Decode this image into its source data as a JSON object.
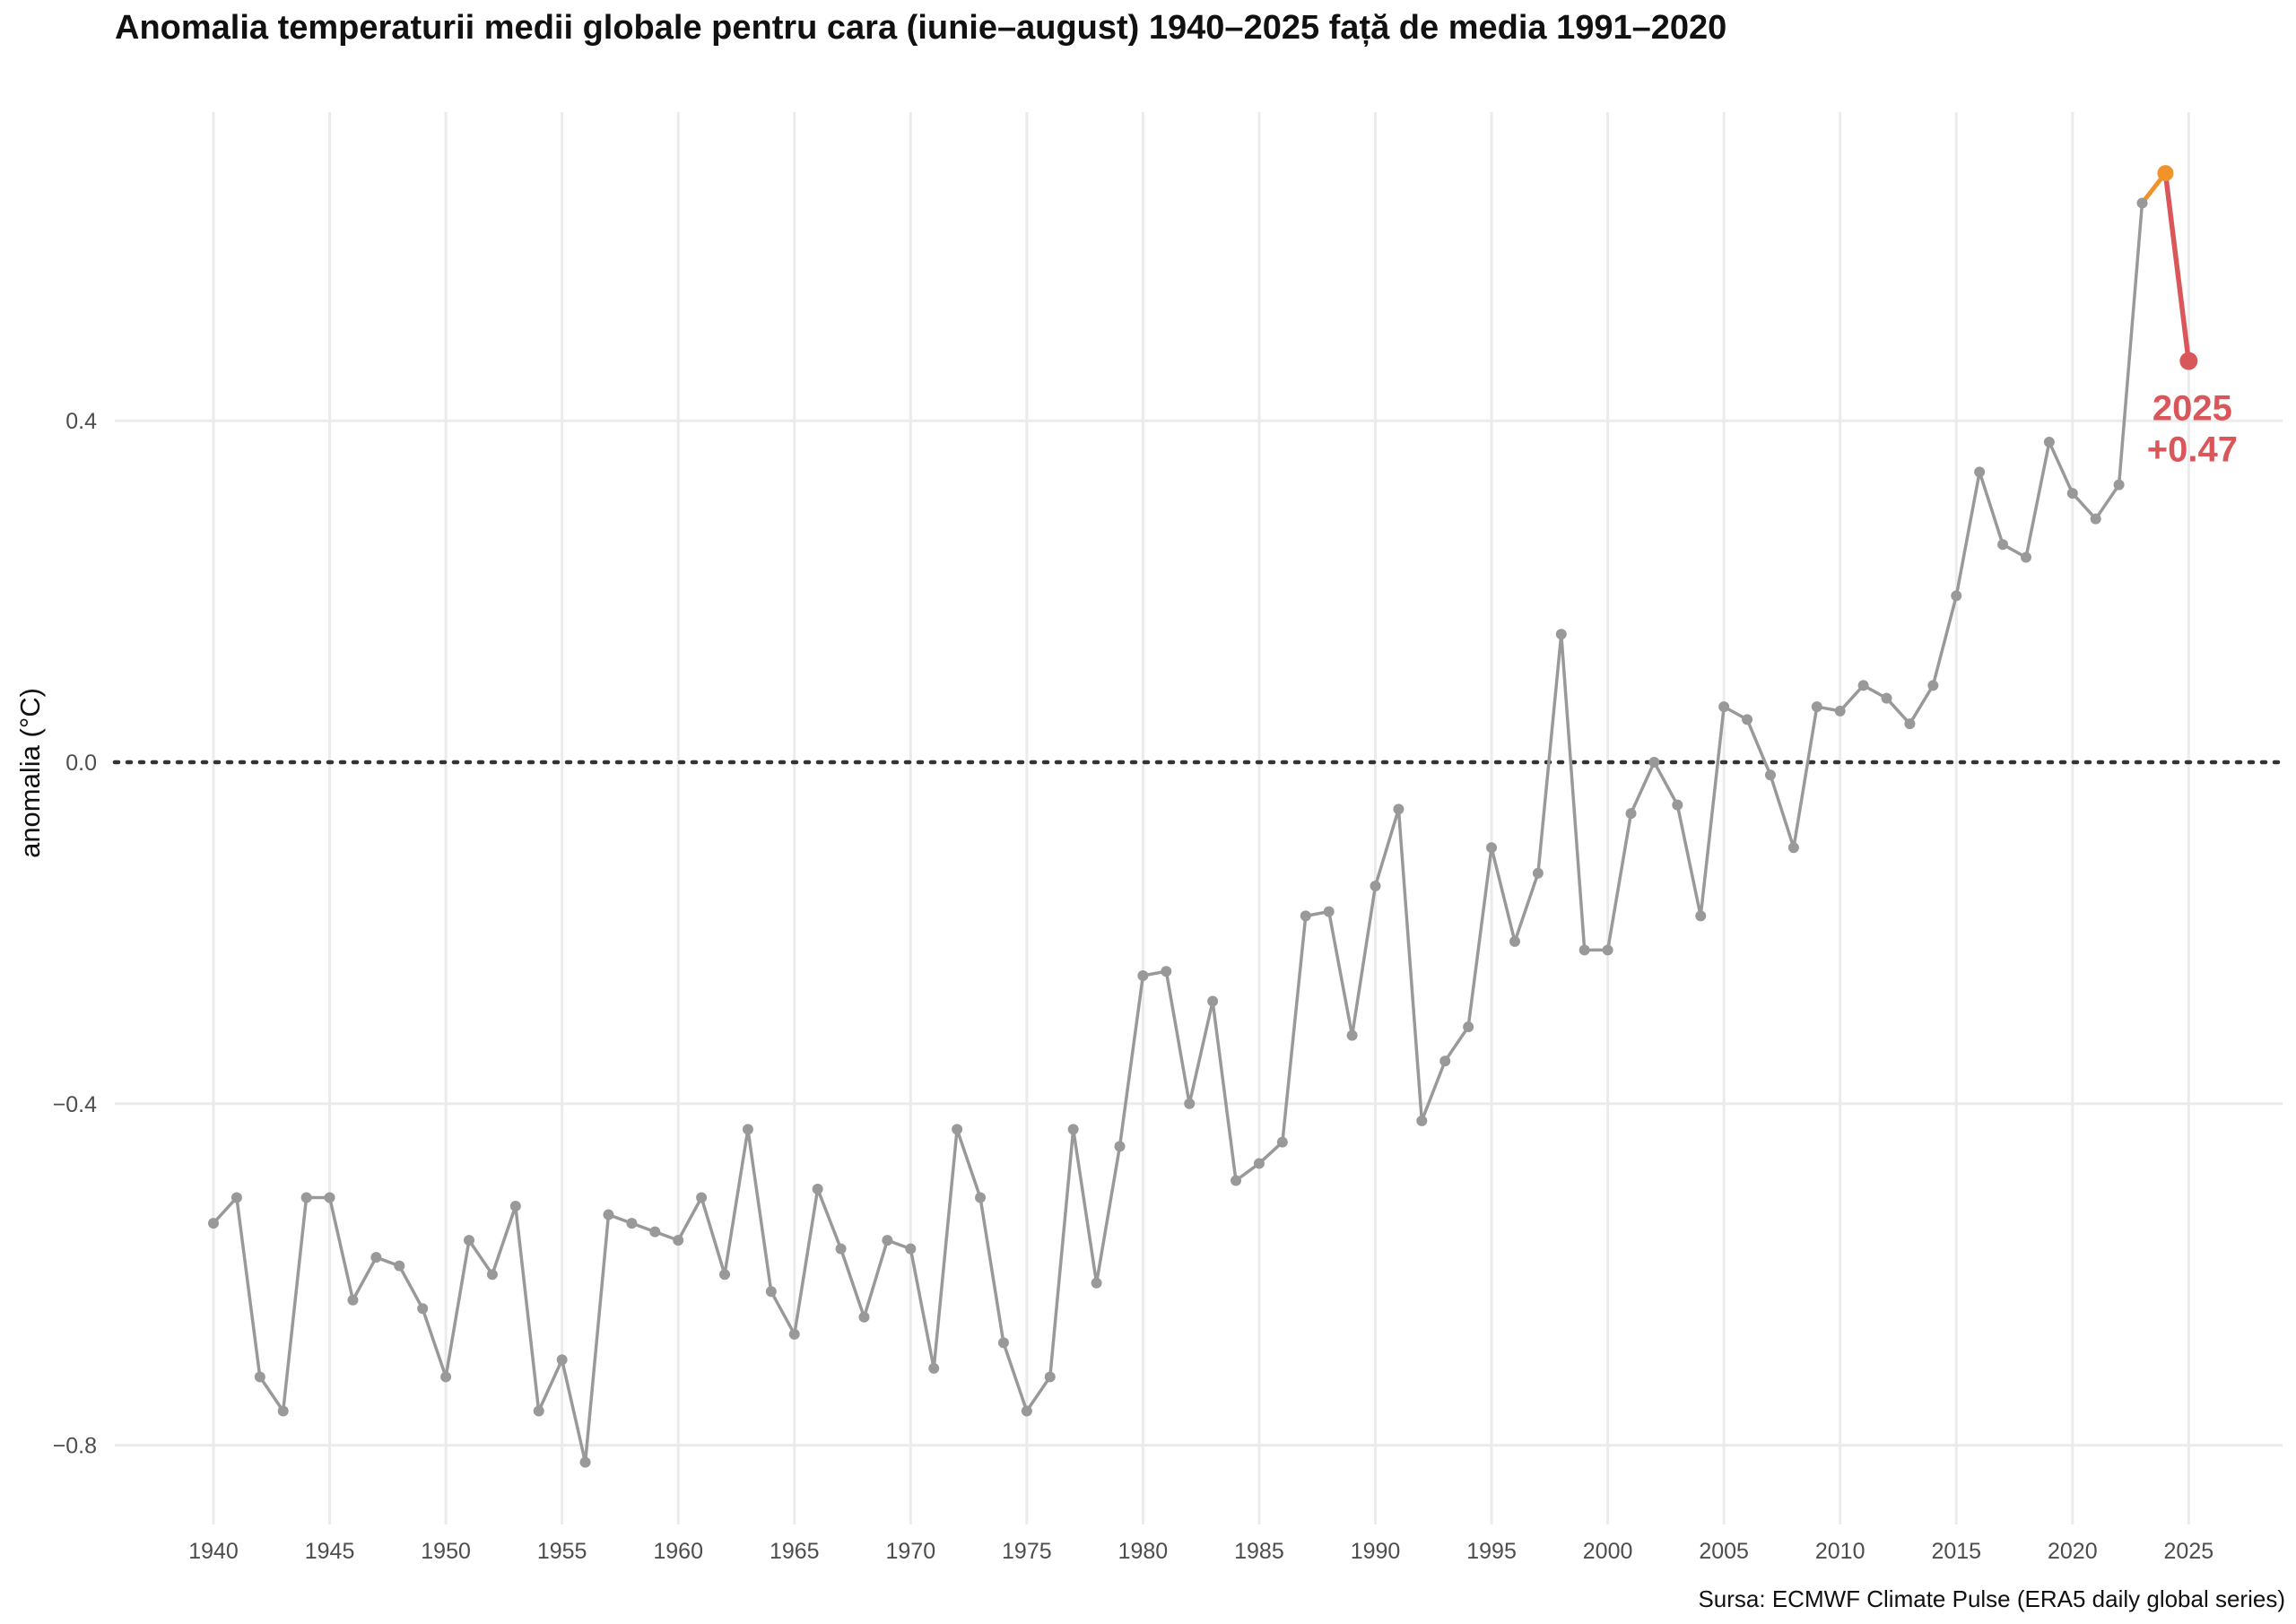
{
  "chart_data": {
    "type": "line",
    "title": "Anomalia temperaturii medii globale pentru cara (iunie–august) 1940–2025 față de media 1991–2020",
    "xlabel": "",
    "ylabel": "anomalia (°C)",
    "caption": "Sursa: ECMWF Climate Pulse (ERA5 daily global series)",
    "xlim": [
      1940,
      2025
    ],
    "ylim": [
      -0.88,
      0.8
    ],
    "x_ticks": [
      1940,
      1945,
      1950,
      1955,
      1960,
      1965,
      1970,
      1975,
      1980,
      1985,
      1990,
      1995,
      2000,
      2005,
      2010,
      2015,
      2020,
      2025
    ],
    "y_ticks": [
      -0.8,
      -0.4,
      0.0,
      0.4
    ],
    "y_tick_labels": [
      "−0.8",
      "−0.4",
      "0.0",
      "0.4"
    ],
    "grid": true,
    "reference_line": {
      "y": 0.0,
      "style": "dotted"
    },
    "colors": {
      "main": "#999999",
      "highlight_2024": "#f0932b",
      "highlight_2025": "#d9575a",
      "grid": "#ebebeb",
      "reference": "#333333"
    },
    "series": [
      {
        "x": [
          1940,
          1941,
          1942,
          1943,
          1944,
          1945,
          1946,
          1947,
          1948,
          1949,
          1950,
          1951,
          1952,
          1953,
          1954,
          1955,
          1956,
          1957,
          1958,
          1959,
          1960,
          1961,
          1962,
          1963,
          1964,
          1965,
          1966,
          1967,
          1968,
          1969,
          1970,
          1971,
          1972,
          1973,
          1974,
          1975,
          1976,
          1977,
          1978,
          1979,
          1980,
          1981,
          1982,
          1983,
          1984,
          1985,
          1986,
          1987,
          1988,
          1989,
          1990,
          1991,
          1992,
          1993,
          1994,
          1995,
          1996,
          1997,
          1998,
          1999,
          2000,
          2001,
          2002,
          2003,
          2004,
          2005,
          2006,
          2007,
          2008,
          2009,
          2010,
          2011,
          2012,
          2013,
          2014,
          2015,
          2016,
          2017,
          2018,
          2019,
          2020,
          2021,
          2022,
          2023
        ],
        "y": [
          -0.54,
          -0.51,
          -0.72,
          -0.76,
          -0.51,
          -0.51,
          -0.63,
          -0.58,
          -0.59,
          -0.64,
          -0.72,
          -0.56,
          -0.6,
          -0.52,
          -0.76,
          -0.7,
          -0.82,
          -0.53,
          -0.54,
          -0.55,
          -0.56,
          -0.51,
          -0.6,
          -0.43,
          -0.62,
          -0.67,
          -0.5,
          -0.57,
          -0.65,
          -0.56,
          -0.57,
          -0.71,
          -0.43,
          -0.51,
          -0.68,
          -0.76,
          -0.72,
          -0.43,
          -0.61,
          -0.45,
          -0.25,
          -0.245,
          -0.4,
          -0.28,
          -0.49,
          -0.47,
          -0.445,
          -0.18,
          -0.175,
          -0.32,
          -0.145,
          -0.055,
          -0.42,
          -0.35,
          -0.31,
          -0.1,
          -0.21,
          -0.13,
          0.15,
          -0.22,
          -0.22,
          -0.06,
          0.0,
          -0.05,
          -0.18,
          0.065,
          0.05,
          -0.015,
          -0.1,
          0.065,
          0.06,
          0.09,
          0.075,
          0.045,
          0.09,
          0.195,
          0.34,
          0.255,
          0.24,
          0.375,
          0.315,
          0.285,
          0.325,
          0.655
        ]
      },
      {
        "x": [
          2023,
          2024
        ],
        "y": [
          0.655,
          0.69
        ]
      },
      {
        "x": [
          2024,
          2025
        ],
        "y": [
          0.69,
          0.47
        ]
      }
    ],
    "annotations": [
      {
        "x": 2025,
        "y": 0.47,
        "year_label": "2025",
        "value_label": "+0.47"
      }
    ]
  }
}
